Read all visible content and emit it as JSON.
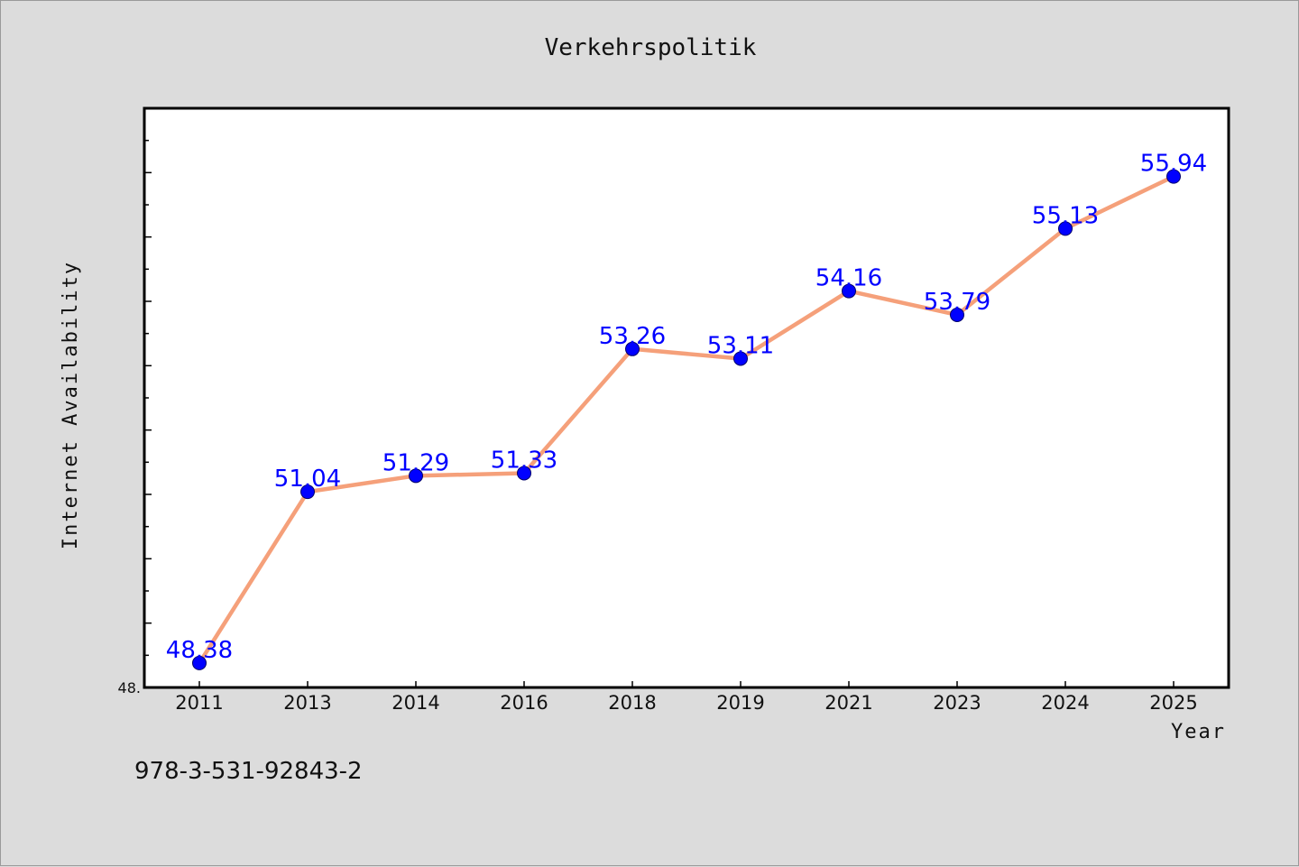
{
  "chart_data": {
    "type": "line",
    "title": "Verkehrspolitik",
    "xlabel": "Year",
    "ylabel": "Internet Availability",
    "x": [
      "2011",
      "2013",
      "2014",
      "2016",
      "2018",
      "2019",
      "2021",
      "2023",
      "2024",
      "2025"
    ],
    "series": [
      {
        "values": [
          48.38,
          51.04,
          51.29,
          51.33,
          53.26,
          53.11,
          54.16,
          53.79,
          55.13,
          55.94
        ],
        "labels": [
          "48.38",
          "51.04",
          "51.29",
          "51.33",
          "53.26",
          "53.11",
          "54.16",
          "53.79",
          "55.13",
          "55.94"
        ]
      }
    ],
    "ylim": [
      48.0,
      57.0
    ],
    "y_min_label": "48.",
    "line_color": "#f5a07a",
    "marker_color": "#0000ff",
    "label_color": "#0000ff",
    "grid": false,
    "legend": "none"
  },
  "footer": {
    "isbn": "978-3-531-92843-2"
  }
}
